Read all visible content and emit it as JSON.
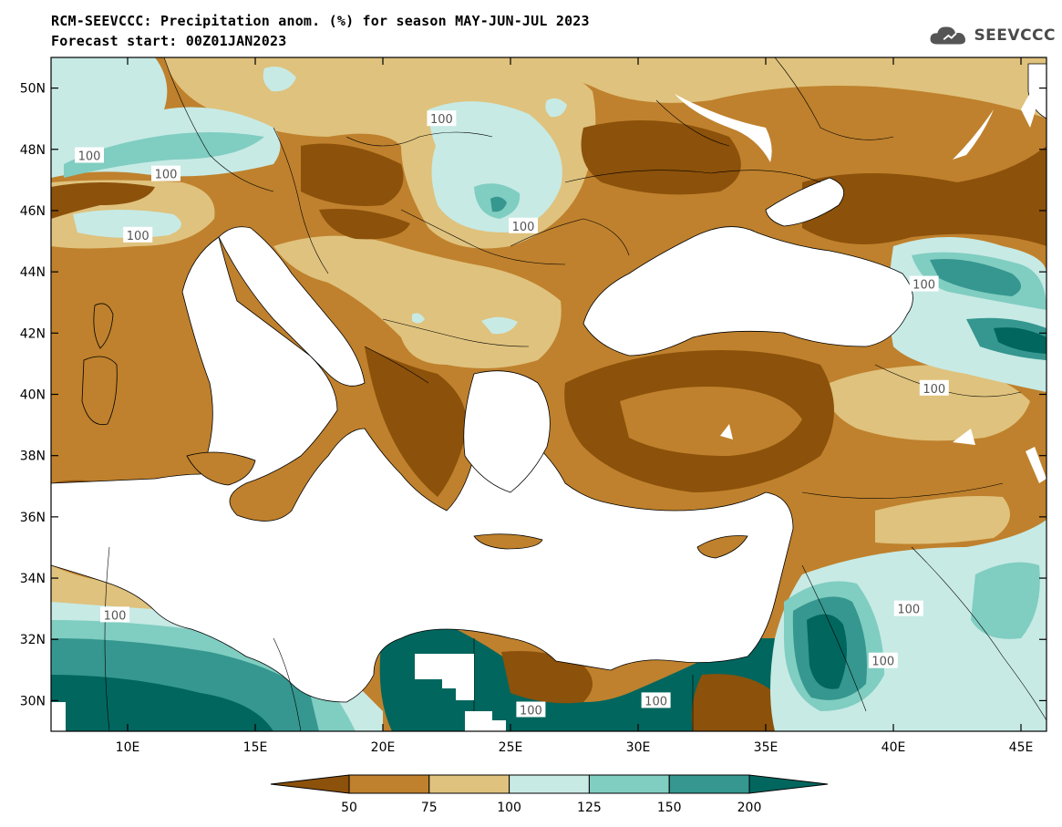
{
  "header": {
    "title_line1": "RCM-SEEVCCC: Precipitation anom. (%) for season MAY-JUN-JUL 2023",
    "title_line2": "Forecast start: 00Z01JAN2023"
  },
  "logo": {
    "text": "SEEVCCC",
    "icon": "cloud-icon"
  },
  "map": {
    "lon_range": [
      7,
      46
    ],
    "lat_range": [
      29,
      51
    ],
    "x_ticks": [
      {
        "value": 10,
        "label": "10E"
      },
      {
        "value": 15,
        "label": "15E"
      },
      {
        "value": 20,
        "label": "20E"
      },
      {
        "value": 25,
        "label": "25E"
      },
      {
        "value": 30,
        "label": "30E"
      },
      {
        "value": 35,
        "label": "35E"
      },
      {
        "value": 40,
        "label": "40E"
      },
      {
        "value": 45,
        "label": "45E"
      }
    ],
    "y_ticks": [
      {
        "value": 50,
        "label": "50N"
      },
      {
        "value": 48,
        "label": "48N"
      },
      {
        "value": 46,
        "label": "46N"
      },
      {
        "value": 44,
        "label": "44N"
      },
      {
        "value": 42,
        "label": "42N"
      },
      {
        "value": 40,
        "label": "40N"
      },
      {
        "value": 38,
        "label": "38N"
      },
      {
        "value": 36,
        "label": "36N"
      },
      {
        "value": 34,
        "label": "34N"
      },
      {
        "value": 32,
        "label": "32N"
      },
      {
        "value": 30,
        "label": "30N"
      }
    ],
    "contour_labels": [
      {
        "text": "100",
        "lon": 8.5,
        "lat": 47.8
      },
      {
        "text": "100",
        "lon": 11.5,
        "lat": 47.2
      },
      {
        "text": "100",
        "lon": 10.4,
        "lat": 45.2
      },
      {
        "text": "100",
        "lon": 22.3,
        "lat": 49.0
      },
      {
        "text": "100",
        "lon": 25.5,
        "lat": 45.5
      },
      {
        "text": "100",
        "lon": 9.5,
        "lat": 32.8
      },
      {
        "text": "100",
        "lon": 41.2,
        "lat": 43.6
      },
      {
        "text": "100",
        "lon": 41.6,
        "lat": 40.2
      },
      {
        "text": "100",
        "lon": 40.6,
        "lat": 33.0
      },
      {
        "text": "100",
        "lon": 39.6,
        "lat": 31.3
      },
      {
        "text": "100",
        "lon": 30.7,
        "lat": 30.0
      },
      {
        "text": "100",
        "lon": 25.8,
        "lat": 29.7
      }
    ]
  },
  "colorbar": {
    "labels": [
      "50",
      "75",
      "100",
      "125",
      "150",
      "200"
    ],
    "colors": {
      "lt50": "#8c510a",
      "c50_75": "#bf812d",
      "c75_100": "#dfc27d",
      "c100_125": "#c7eae5",
      "c125_150": "#80cdc1",
      "c150_200": "#35978f",
      "gt200": "#01665e"
    }
  }
}
